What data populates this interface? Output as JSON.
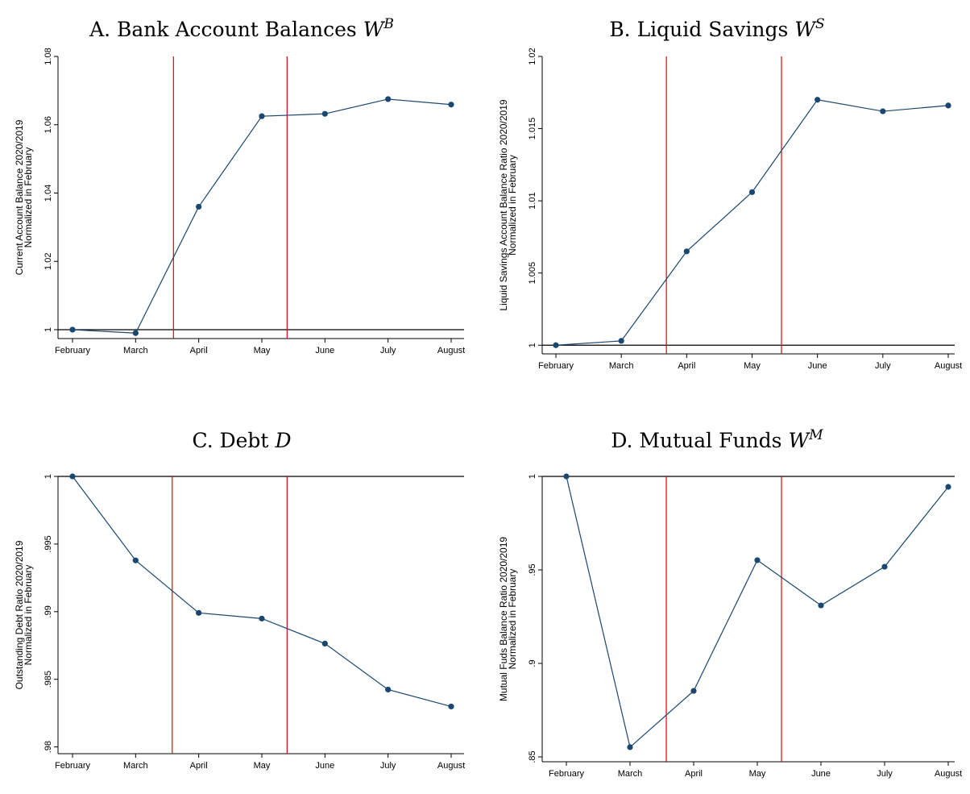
{
  "chart_data": [
    {
      "type": "line",
      "title": "A. Bank Account Balances",
      "title_var": "W",
      "title_sup": "B",
      "ylabel": [
        "Current Account Balance 2020/2019",
        "Normalized in February"
      ],
      "categories": [
        "February",
        "March",
        "April",
        "May",
        "June",
        "July",
        "August"
      ],
      "values": [
        1.0,
        0.999,
        1.036,
        1.0625,
        1.0632,
        1.0675,
        1.0659
      ],
      "color": "#1a476f",
      "ylim": [
        0.9974,
        1.08
      ],
      "yticks": [
        1,
        1.02,
        1.04,
        1.06,
        1.08
      ],
      "hline": 1,
      "vlines": [
        1.6,
        3.4
      ],
      "vline_color": "#e8000b"
    },
    {
      "type": "line",
      "title": "B. Liquid Savings",
      "title_var": "W",
      "title_sup": "S",
      "ylabel": [
        "Liquid Savings Account Balance Ratio 2020/2019",
        "Normalized in February"
      ],
      "categories": [
        "February",
        "March",
        "April",
        "May",
        "June",
        "July",
        "August"
      ],
      "values": [
        1.0,
        1.0003,
        1.0065,
        1.0106,
        1.017,
        1.0162,
        1.0166
      ],
      "color": "#1a476f",
      "ylim": [
        0.9994,
        1.02
      ],
      "yticks": [
        1,
        1.005,
        1.01,
        1.015,
        1.02
      ],
      "hline": 1,
      "vlines": [
        1.69,
        3.45
      ],
      "vline_color": "#e8000b"
    },
    {
      "type": "line",
      "title": "C. Debt",
      "title_var": "D",
      "title_sup": "",
      "ylabel": [
        "Outstanding Debt Ratio 2020/2019",
        "Normalized in February"
      ],
      "categories": [
        "February",
        "March",
        "April",
        "May",
        "June",
        "July",
        "August"
      ],
      "values": [
        1.0,
        0.99379,
        0.98991,
        0.98949,
        0.98764,
        0.98424,
        0.98299
      ],
      "color": "#1a476f",
      "ylim": [
        0.9795,
        1.0
      ],
      "yticks": [
        {
          "value": 0.98,
          "label": ".98"
        },
        {
          "value": 0.985,
          "label": ".985"
        },
        {
          "value": 0.99,
          "label": ".99"
        },
        {
          "value": 0.995,
          "label": ".995"
        },
        1
      ],
      "hline": 1,
      "vlines": [
        1.58,
        3.4
      ],
      "vline_color": "#e8000b"
    },
    {
      "type": "line",
      "title": "D. Mutual Funds",
      "title_var": "W",
      "title_sup": "M",
      "ylabel": [
        "Mutual Fuds Balance Ratio 2020/2019",
        "Normalized in February"
      ],
      "categories": [
        "February",
        "March",
        "April",
        "May",
        "June",
        "July",
        "August"
      ],
      "values": [
        1.0,
        0.8552,
        0.8853,
        0.9552,
        0.931,
        0.9517,
        0.9944
      ],
      "color": "#1a476f",
      "ylim": [
        0.8474,
        1.0
      ],
      "yticks": [
        {
          "value": 0.85,
          "label": ".85"
        },
        {
          "value": 0.9,
          "label": ".9"
        },
        {
          "value": 0.95,
          "label": ".95"
        },
        1
      ],
      "hline": 1,
      "vlines": [
        1.57,
        3.38
      ],
      "vline_color": "#e8000b"
    }
  ]
}
